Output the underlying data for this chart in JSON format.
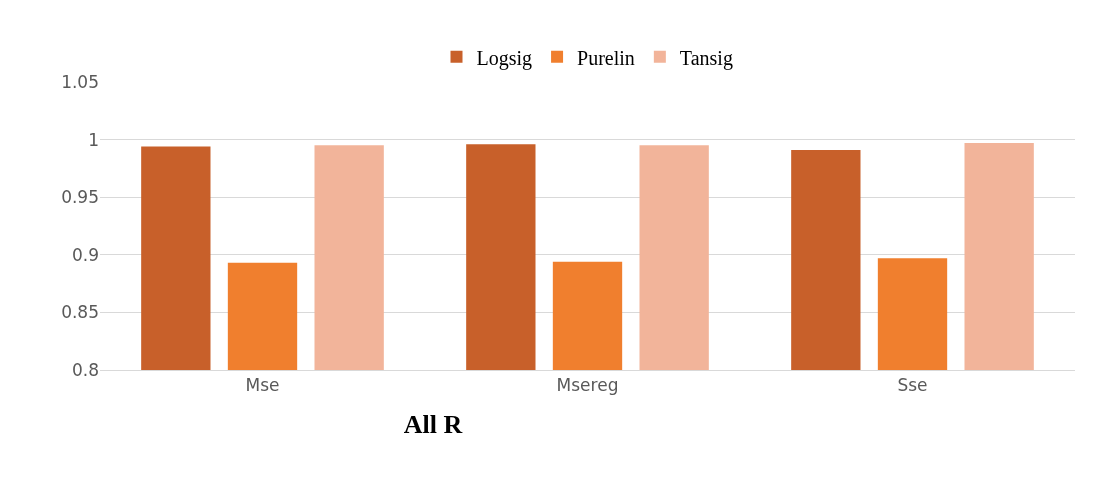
{
  "chart_data": {
    "type": "bar",
    "title": "All R",
    "categories": [
      "Mse",
      "Msereg",
      "Sse"
    ],
    "series": [
      {
        "name": "Logsig",
        "color": "#c8602a",
        "values": [
          0.994,
          0.996,
          0.991
        ]
      },
      {
        "name": "Purelin",
        "color": "#f07f2e",
        "values": [
          0.893,
          0.894,
          0.897
        ]
      },
      {
        "name": "Tansig",
        "color": "#f2b49a",
        "values": [
          0.995,
          0.995,
          0.997
        ]
      }
    ],
    "ylim": [
      0.8,
      1.05
    ],
    "yticks": [
      0.8,
      0.85,
      0.9,
      0.95,
      1,
      1.05
    ],
    "grid": "y",
    "legend": "top"
  }
}
